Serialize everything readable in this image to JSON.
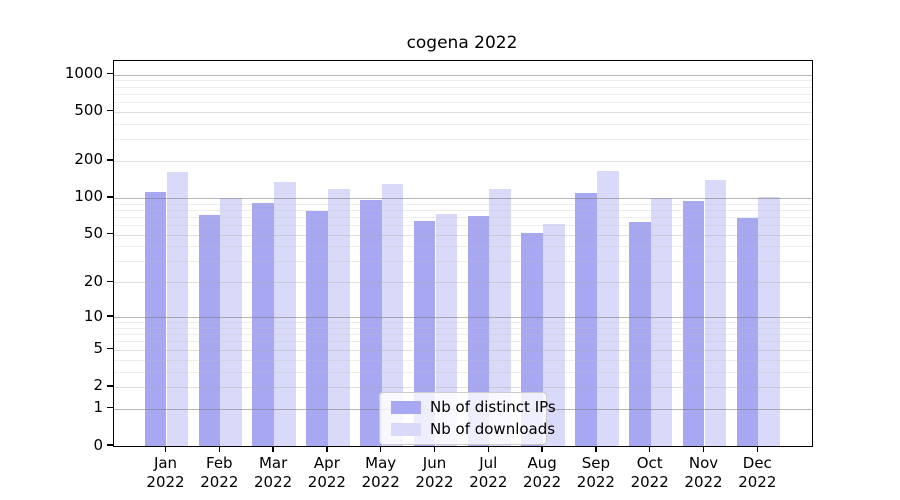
{
  "title": "cogena 2022",
  "chart_data": {
    "type": "bar",
    "title": "cogena 2022",
    "categories": [
      "Jan",
      "Feb",
      "Mar",
      "Apr",
      "May",
      "Jun",
      "Jul",
      "Aug",
      "Sep",
      "Oct",
      "Nov",
      "Dec"
    ],
    "year": "2022",
    "series": [
      {
        "name": "Nb of distinct IPs",
        "color": "#a8a8f2",
        "values": [
          112,
          73,
          91,
          78,
          96,
          65,
          71,
          52,
          109,
          64,
          95,
          69
        ]
      },
      {
        "name": "Nb of downloads",
        "color": "#d9d9f9",
        "values": [
          163,
          100,
          136,
          118,
          130,
          74,
          118,
          61,
          166,
          100,
          140,
          102
        ]
      }
    ],
    "xlabel": "",
    "ylabel": "",
    "y_ticks": [
      0,
      1,
      2,
      5,
      10,
      20,
      50,
      100,
      200,
      500,
      1000
    ],
    "y_major_ticks": [
      1,
      10,
      100,
      1000
    ],
    "scale": "log10(1+x)",
    "ylim": [
      0,
      1288
    ],
    "grid": true,
    "legend_position": "bottom-center",
    "colors": {
      "grid_major": "rgba(120,120,120,0.55)",
      "grid_minor_labeled": "rgba(170,170,170,0.38)",
      "grid_minor_unlabeled": "rgba(190,190,190,0.28)",
      "spine": "#000000",
      "background": "#ffffff"
    }
  }
}
